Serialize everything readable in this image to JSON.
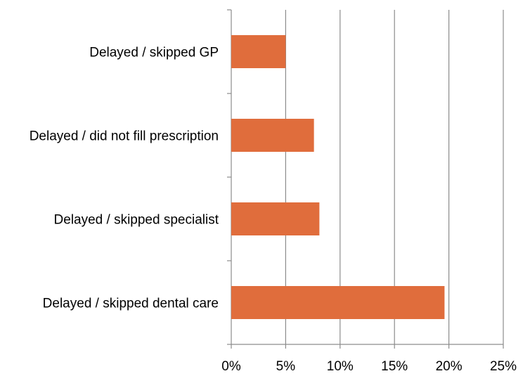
{
  "chart_data": {
    "type": "bar",
    "orientation": "horizontal",
    "categories": [
      "Delayed / skipped GP",
      "Delayed / did not fill prescription",
      "Delayed / skipped specialist",
      "Delayed / skipped dental care"
    ],
    "values": [
      5.0,
      7.6,
      8.1,
      19.6
    ],
    "value_format": "percent",
    "xlim": [
      0,
      25
    ],
    "xticks": [
      0,
      5,
      10,
      15,
      20,
      25
    ],
    "xtick_labels": [
      "0%",
      "5%",
      "10%",
      "15%",
      "20%",
      "25%"
    ],
    "title": "",
    "xlabel": "",
    "ylabel": "",
    "grid": "vertical",
    "legend": "none",
    "bar_color": "#e06d3c",
    "grid_color": "#8c8c8c"
  }
}
